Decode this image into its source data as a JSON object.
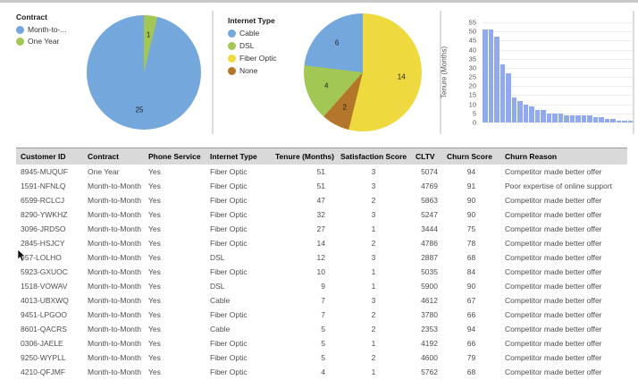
{
  "chart_data": [
    {
      "type": "pie",
      "legend_title": "Contract",
      "legend_position": "left",
      "legend": [
        {
          "label": "Month-to-...",
          "color": "#74a7dc"
        },
        {
          "label": "One Year",
          "color": "#a3c755"
        }
      ],
      "slices": [
        {
          "label": "One Year",
          "value": 1,
          "color": "#a3c755"
        },
        {
          "label": "Month-to-Month",
          "value": 25,
          "color": "#74a7dc"
        }
      ]
    },
    {
      "type": "pie",
      "legend_title": "Internet Type",
      "legend_position": "left",
      "legend": [
        {
          "label": "Cable",
          "color": "#74a7dc"
        },
        {
          "label": "DSL",
          "color": "#a3c755"
        },
        {
          "label": "Fiber Optic",
          "color": "#eed93f"
        },
        {
          "label": "None",
          "color": "#b3762b"
        }
      ],
      "slices": [
        {
          "label": "Fiber Optic",
          "value": 14,
          "color": "#eed93f"
        },
        {
          "label": "None",
          "value": 2,
          "color": "#b3762b"
        },
        {
          "label": "DSL",
          "value": 4,
          "color": "#a3c755"
        },
        {
          "label": "Cable",
          "value": 6,
          "color": "#74a7dc"
        }
      ]
    },
    {
      "type": "bar",
      "title": "",
      "xlabel": "",
      "ylabel": "Tenure (Months)",
      "ylim": [
        0,
        55
      ],
      "yticks": [
        0,
        5,
        10,
        15,
        20,
        25,
        30,
        35,
        40,
        45,
        50,
        55
      ],
      "grid": true,
      "bar_color": "#91aaee",
      "values": [
        51,
        51,
        47,
        32,
        27,
        14,
        12,
        10,
        9,
        7,
        7,
        5,
        5,
        5,
        4,
        4,
        4,
        4,
        4,
        3,
        3,
        2,
        2,
        1,
        1,
        1
      ]
    }
  ],
  "table": {
    "columns": [
      {
        "label": "Customer ID",
        "align": "left"
      },
      {
        "label": "Contract",
        "align": "left"
      },
      {
        "label": "Phone Service",
        "align": "left"
      },
      {
        "label": "Internet Type",
        "align": "left"
      },
      {
        "label": "Tenure (Months)",
        "align": "right"
      },
      {
        "label": "Satisfaction Score",
        "align": "center"
      },
      {
        "label": "CLTV",
        "align": "right"
      },
      {
        "label": "Churn Score",
        "align": "center"
      },
      {
        "label": "Churn Reason",
        "align": "left"
      }
    ],
    "header_aligns": [
      "left",
      "left",
      "left",
      "left",
      "right",
      "right",
      "right",
      "right",
      "left"
    ],
    "rows": [
      [
        "8945-MUQUF",
        "One Year",
        "Yes",
        "Fiber Optic",
        "51",
        "3",
        "5074",
        "94",
        "Competitor made better offer"
      ],
      [
        "1591-NFNLQ",
        "Month-to-Month",
        "Yes",
        "Fiber Optic",
        "51",
        "3",
        "4769",
        "91",
        "Poor expertise of online support"
      ],
      [
        "6599-RCLCJ",
        "Month-to-Month",
        "Yes",
        "Fiber Optic",
        "47",
        "2",
        "5863",
        "90",
        "Competitor made better offer"
      ],
      [
        "8290-YWKHZ",
        "Month-to-Month",
        "Yes",
        "Fiber Optic",
        "32",
        "3",
        "5247",
        "90",
        "Competitor made better offer"
      ],
      [
        "3096-JRDSO",
        "Month-to-Month",
        "Yes",
        "Fiber Optic",
        "27",
        "1",
        "3444",
        "75",
        "Competitor made better offer"
      ],
      [
        "2845-HSJCY",
        "Month-to-Month",
        "Yes",
        "Fiber Optic",
        "14",
        "2",
        "4786",
        "78",
        "Competitor made better offer"
      ],
      [
        "957-LOLHO",
        "Month-to-Month",
        "Yes",
        "DSL",
        "12",
        "3",
        "2887",
        "68",
        "Competitor made better offer"
      ],
      [
        "5923-GXUOC",
        "Month-to-Month",
        "Yes",
        "Fiber Optic",
        "10",
        "1",
        "5035",
        "84",
        "Competitor made better offer"
      ],
      [
        "1518-VOWAV",
        "Month-to-Month",
        "Yes",
        "DSL",
        "9",
        "1",
        "5900",
        "90",
        "Competitor made better offer"
      ],
      [
        "4013-UBXWQ",
        "Month-to-Month",
        "Yes",
        "Cable",
        "7",
        "3",
        "4612",
        "67",
        "Competitor made better offer"
      ],
      [
        "9451-LPGOO",
        "Month-to-Month",
        "Yes",
        "Fiber Optic",
        "7",
        "2",
        "3780",
        "66",
        "Competitor made better offer"
      ],
      [
        "8601-QACRS",
        "Month-to-Month",
        "Yes",
        "Cable",
        "5",
        "2",
        "2353",
        "94",
        "Competitor made better offer"
      ],
      [
        "0306-JAELE",
        "Month-to-Month",
        "Yes",
        "Fiber Optic",
        "5",
        "1",
        "4192",
        "66",
        "Competitor made better offer"
      ],
      [
        "9250-WYPLL",
        "Month-to-Month",
        "Yes",
        "Fiber Optic",
        "5",
        "2",
        "4600",
        "79",
        "Competitor made better offer"
      ],
      [
        "4210-QFJMF",
        "Month-to-Month",
        "Yes",
        "Fiber Optic",
        "4",
        "1",
        "5762",
        "68",
        "Competitor made better offer"
      ]
    ]
  },
  "pointer": {
    "icon": "mouse-cursor-icon"
  }
}
